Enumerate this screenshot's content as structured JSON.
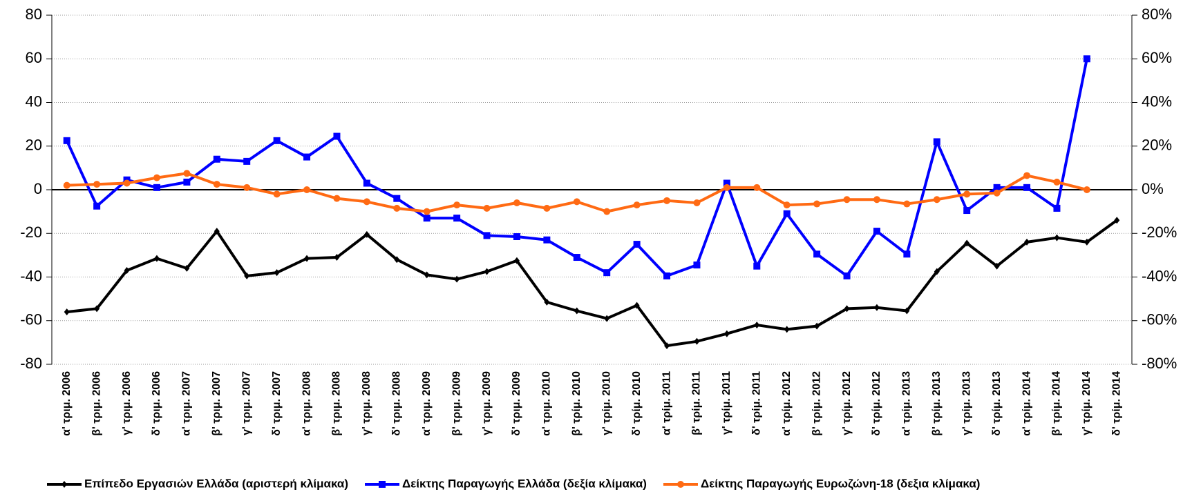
{
  "chart_data": {
    "type": "line",
    "categories": [
      "α' τριμ. 2006",
      "β' τριμ. 2006",
      "γ' τριμ. 2006",
      "δ' τριμ. 2006",
      "α' τριμ. 2007",
      "β' τριμ. 2007",
      "γ' τριμ. 2007",
      "δ' τριμ. 2007",
      "α' τριμ. 2008",
      "β' τριμ. 2008",
      "γ' τριμ. 2008",
      "δ' τριμ. 2008",
      "α' τριμ. 2009",
      "β' τριμ. 2009",
      "γ' τριμ. 2009",
      "δ' τριμ. 2009",
      "α' τριμ. 2010",
      "β' τρίμ. 2010",
      "γ' τρίμ. 2010",
      "δ' τρίμ. 2010",
      "α' τρίμ. 2011",
      "β' τρίμ. 2011",
      "γ' τρίμ. 2011",
      "δ' τρίμ. 2011",
      "α' τρίμ. 2012",
      "β' τρίμ. 2012",
      "γ' τρίμ. 2012",
      "δ' τρίμ. 2012",
      "α' τρίμ. 2013",
      "β' τρίμ. 2013",
      "γ' τρίμ. 2013",
      "δ' τρίμ. 2013",
      "α' τρίμ. 2014",
      "β' τρίμ. 2014",
      "γ' τρίμ. 2014",
      "δ' τρίμ. 2014"
    ],
    "series": [
      {
        "name": "Επίπεδο Εργασιών Ελλάδα (αριστερή κλίμακα)",
        "color": "#000000",
        "marker": "diamond",
        "axis": "y",
        "values": [
          -56,
          -54.5,
          -37,
          -31.5,
          -36,
          -19,
          -39.5,
          -38,
          -31.5,
          -31,
          -20.5,
          -32,
          -39,
          -41,
          -37.5,
          -32.5,
          -51.5,
          -55.5,
          -59,
          -53,
          -71.5,
          -69.5,
          -66,
          -62,
          -64,
          -62.5,
          -54.5,
          -54,
          -55.5,
          -37.5,
          -24.5,
          -35,
          -24,
          -22,
          -24,
          -14
        ]
      },
      {
        "name": "Δείκτης Παραγωγής Ελλάδα (δεξία κλίμακα)",
        "color": "#0000ff",
        "marker": "square",
        "axis": "y2",
        "values": [
          22.5,
          -7.5,
          4.5,
          1,
          3.5,
          14,
          13,
          22.5,
          15,
          24.5,
          3,
          -4,
          -13,
          -13,
          -21,
          -21.5,
          -23,
          -31,
          -38,
          -25,
          -39.5,
          -34.5,
          3,
          -35,
          -11,
          -29.5,
          -39.5,
          -19,
          -29.5,
          22,
          -9.5,
          1,
          1,
          -8.5,
          60,
          null
        ]
      },
      {
        "name": "Δείκτης Παραγωγής Ευρωζώνη-18 (δεξια κλίμακα)",
        "color": "#ff6a13",
        "marker": "circle",
        "axis": "y2",
        "values": [
          2,
          2.5,
          3,
          5.5,
          7.5,
          2.5,
          1,
          -2,
          0,
          -4,
          -5.5,
          -8.5,
          -10,
          -7,
          -8.5,
          -6,
          -8.5,
          -5.5,
          -10,
          -7,
          -5,
          -6,
          1,
          1,
          -7,
          -6.5,
          -4.5,
          -4.5,
          -6.5,
          -4.5,
          -2,
          -1.5,
          6.5,
          3.5,
          0,
          null
        ]
      }
    ],
    "ylim": [
      -80,
      80
    ],
    "yticks": [
      -80,
      -60,
      -40,
      -20,
      0,
      20,
      40,
      60,
      80
    ],
    "y2lim": [
      -80,
      80
    ],
    "y2ticks": [
      {
        "value": -80,
        "label": "-80%"
      },
      {
        "value": -60,
        "label": "-60%"
      },
      {
        "value": -40,
        "label": "-40%"
      },
      {
        "value": -20,
        "label": "-20%"
      },
      {
        "value": 0,
        "label": "0%"
      },
      {
        "value": 20,
        "label": "20%"
      },
      {
        "value": 40,
        "label": "40%"
      },
      {
        "value": 60,
        "label": "60%"
      },
      {
        "value": 80,
        "label": "80%"
      }
    ],
    "grid": true,
    "legend": "bottom"
  }
}
